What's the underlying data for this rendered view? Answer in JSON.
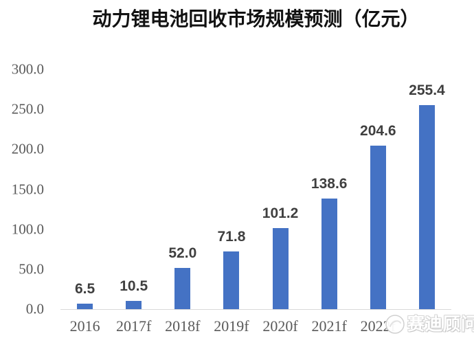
{
  "title": "动力锂电池回收市场规模预测（亿元）",
  "watermark": {
    "text": "赛迪顾问",
    "logo": "ccid-circle-logo"
  },
  "colors": {
    "background": "#FFFFFF",
    "bar": "#4472C4",
    "axis_line": "#D9D9D9",
    "tick_label": "#595959",
    "data_label": "#3F3F3F",
    "title": "#121212",
    "watermark": "#FFFFFF"
  },
  "chart_data": {
    "type": "bar",
    "title": "动力锂电池回收市场规模预测（亿元）",
    "categories": [
      "2016",
      "2017f",
      "2018f",
      "2019f",
      "2020f",
      "2021f",
      "2022f",
      ""
    ],
    "values": [
      6.5,
      10.5,
      52.0,
      71.8,
      101.2,
      138.6,
      204.6,
      255.4
    ],
    "data_labels": [
      "6.5",
      "10.5",
      "52.0",
      "71.8",
      "101.2",
      "138.6",
      "204.6",
      "255.4"
    ],
    "xlabel": "",
    "ylabel": "",
    "ylim": [
      0,
      300
    ],
    "ytick_step": 50,
    "yticks": [
      {
        "label": "300.0",
        "value": 300
      },
      {
        "label": "250.0",
        "value": 250
      },
      {
        "label": "200.0",
        "value": 200
      },
      {
        "label": "150.0",
        "value": 150
      },
      {
        "label": "100.0",
        "value": 100
      },
      {
        "label": "50.0",
        "value": 50
      },
      {
        "label": "0.0",
        "value": 0
      }
    ],
    "grid": false,
    "legend": false
  }
}
